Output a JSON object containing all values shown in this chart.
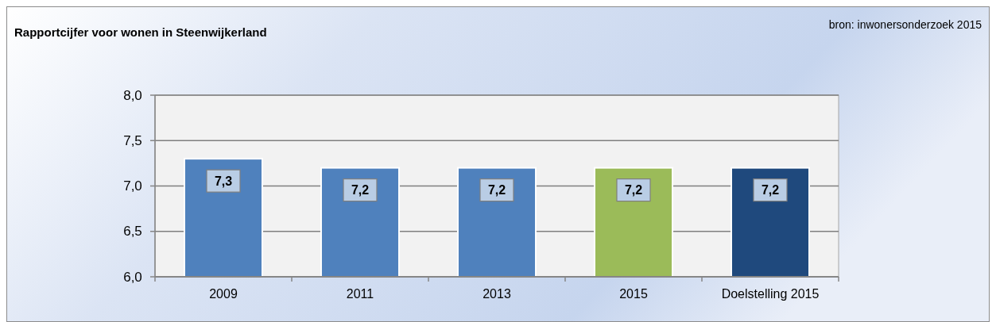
{
  "chart_data": {
    "type": "bar",
    "title": "Rapportcijfer voor wonen in Steenwijkerland",
    "annotations": [
      "bron: inwonersonderzoek 2015"
    ],
    "categories": [
      "2009",
      "2011",
      "2013",
      "2015",
      "Doelstelling 2015"
    ],
    "values": [
      7.3,
      7.2,
      7.2,
      7.2,
      7.2
    ],
    "colors": [
      "#4f81bd",
      "#4f81bd",
      "#4f81bd",
      "#9bbb59",
      "#1f497d"
    ],
    "value_labels": [
      "7,3",
      "7,2",
      "7,2",
      "7,2",
      "7,2"
    ],
    "ylim": [
      6,
      8
    ],
    "yticks": [
      {
        "value": 6,
        "label": "6,0"
      },
      {
        "value": 6.5,
        "label": "6,5"
      },
      {
        "value": 7,
        "label": "7,0"
      },
      {
        "value": 7.5,
        "label": "7,5"
      },
      {
        "value": 8,
        "label": "8,0"
      }
    ],
    "grid": "y"
  }
}
